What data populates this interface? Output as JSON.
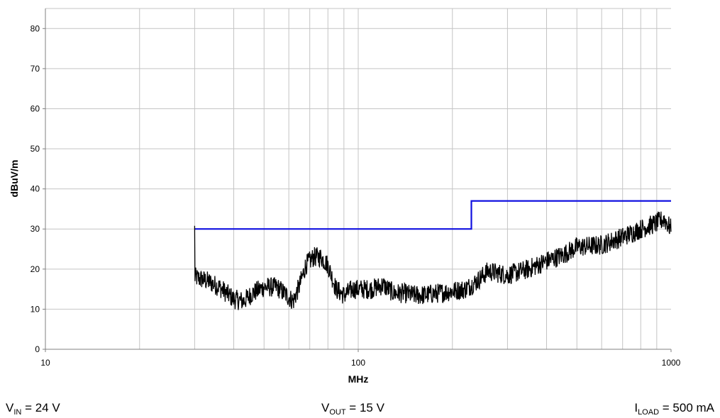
{
  "chart_data": {
    "type": "line",
    "title": "",
    "xlabel": "MHz",
    "ylabel": "dBuV/m",
    "xscale": "log",
    "xlim": [
      10,
      1000
    ],
    "ylim": [
      0,
      85
    ],
    "xticks": [
      10,
      100,
      1000
    ],
    "xtick_labels": [
      "10",
      "100",
      "1000"
    ],
    "yticks": [
      0,
      10,
      20,
      30,
      40,
      50,
      60,
      70,
      80
    ],
    "grid": true,
    "legend": "none",
    "series": [
      {
        "color": "#1010e0",
        "x": [
          30,
          230,
          230,
          1000
        ],
        "y": [
          30,
          30,
          37,
          37
        ]
      },
      {
        "color": "#000000",
        "noise_db": 2.5,
        "x": [
          30,
          33,
          36,
          40,
          43,
          46,
          50,
          55,
          58,
          62,
          65,
          68,
          72,
          76,
          80,
          85,
          90,
          96,
          100,
          110,
          120,
          130,
          140,
          150,
          160,
          180,
          200,
          220,
          240,
          260,
          300,
          350,
          400,
          450,
          500,
          600,
          700,
          800,
          900,
          950,
          1000
        ],
        "y": [
          18,
          17,
          15.5,
          12.5,
          12,
          14,
          15.5,
          15.5,
          14,
          12,
          16,
          21,
          23,
          23,
          21,
          15,
          13.5,
          15,
          15,
          15,
          16,
          14,
          14,
          13.5,
          13.5,
          14,
          14.5,
          15,
          17,
          19.5,
          18.5,
          20,
          22,
          23.5,
          25.5,
          26,
          28,
          30,
          31.5,
          32.5,
          30
        ]
      }
    ]
  },
  "conditions": {
    "vin": {
      "symbol": "V",
      "sub": "IN",
      "rest": " = 24 V"
    },
    "vout": {
      "symbol": "V",
      "sub": "OUT",
      "rest": " = 15 V"
    },
    "iload": {
      "symbol": "I",
      "sub": "LOAD",
      "rest": " = 500 mA"
    }
  }
}
